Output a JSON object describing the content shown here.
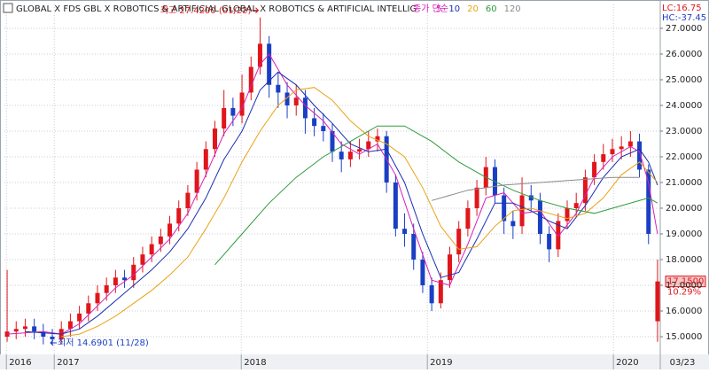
{
  "chart_data": {
    "type": "candlestick",
    "title": "GLOBAL X FDS GBL X ROBOTICS & ARTIFICIAL  GLOBAL X ROBOTICS & ARTIFICIAL INTELLIG",
    "indicator_label": "종가 단순",
    "top_right": [
      "LC:16.75",
      "HC:-37.45"
    ],
    "up_color": "#e0161b",
    "down_color": "#1a3fc4",
    "grid": true,
    "xlim": [
      -0.3,
      72.3
    ],
    "ylim": [
      14.31,
      27.93
    ],
    "yticks": [
      {
        "value": 15,
        "label": "15.0000"
      },
      {
        "value": 16,
        "label": "16.0000"
      },
      {
        "value": 17,
        "label": "17.0000"
      },
      {
        "value": 18,
        "label": "18.0000"
      },
      {
        "value": 19,
        "label": "19.0000"
      },
      {
        "value": 20,
        "label": "20.0000"
      },
      {
        "value": 21,
        "label": "21.0000"
      },
      {
        "value": 22,
        "label": "22.0000"
      },
      {
        "value": 23,
        "label": "23.0000"
      },
      {
        "value": 24,
        "label": "24.0000"
      },
      {
        "value": 25,
        "label": "25.0000"
      },
      {
        "value": 26,
        "label": "26.0000"
      },
      {
        "value": 27,
        "label": "27.0000"
      }
    ],
    "xticks": [
      {
        "value": 0.7,
        "label": "2016"
      },
      {
        "value": 6,
        "label": "2017"
      },
      {
        "value": 26.7,
        "label": "2018"
      },
      {
        "value": 47.3,
        "label": "2019"
      },
      {
        "value": 67.9,
        "label": "2020"
      }
    ],
    "last_date": "03/23",
    "open": [
      15.0,
      15.2,
      15.3,
      15.4,
      15.2,
      15.0,
      14.9,
      15.3,
      15.6,
      15.9,
      16.3,
      16.7,
      17.0,
      17.3,
      17.2,
      17.8,
      18.2,
      18.6,
      18.9,
      19.4,
      20.0,
      20.6,
      21.5,
      22.3,
      23.1,
      23.9,
      23.6,
      24.5,
      25.5,
      26.4,
      24.8,
      24.5,
      24.0,
      24.3,
      23.5,
      23.2,
      23.0,
      22.2,
      21.9,
      22.2,
      22.3,
      22.6,
      22.8,
      21.0,
      19.2,
      19.0,
      18.0,
      17.0,
      16.3,
      17.2,
      18.2,
      19.2,
      20.0,
      20.8,
      21.6,
      20.5,
      19.5,
      19.3,
      20.5,
      20.3,
      19.0,
      18.4,
      19.5,
      20.0,
      20.2,
      21.2,
      21.8,
      22.1,
      22.3,
      22.4,
      22.6,
      21.5,
      15.6
    ],
    "high": [
      17.6,
      15.6,
      15.7,
      15.7,
      15.5,
      15.3,
      15.6,
      15.9,
      16.2,
      16.6,
      17.0,
      17.3,
      17.6,
      17.6,
      18.1,
      18.5,
      18.9,
      19.2,
      19.7,
      20.3,
      20.9,
      21.8,
      22.6,
      23.4,
      24.6,
      24.3,
      25.2,
      25.9,
      27.42,
      26.7,
      25.3,
      24.9,
      24.8,
      24.6,
      23.9,
      23.7,
      23.3,
      22.6,
      22.6,
      22.7,
      23.0,
      23.1,
      23.0,
      21.3,
      19.8,
      19.4,
      18.3,
      17.3,
      17.5,
      18.5,
      19.5,
      20.3,
      21.1,
      22.0,
      21.9,
      20.8,
      19.9,
      21.2,
      20.9,
      20.6,
      19.3,
      19.8,
      20.3,
      20.6,
      21.5,
      22.1,
      22.5,
      22.7,
      22.8,
      23.0,
      22.9,
      21.7,
      18.0
    ],
    "low": [
      14.8,
      14.9,
      15.0,
      14.9,
      14.7,
      14.69,
      14.7,
      15.0,
      15.3,
      15.6,
      16.0,
      16.4,
      16.7,
      16.9,
      16.9,
      17.5,
      17.9,
      18.3,
      18.6,
      19.1,
      19.7,
      20.3,
      21.2,
      22.0,
      22.8,
      23.2,
      23.3,
      24.2,
      25.2,
      24.3,
      23.9,
      23.5,
      23.6,
      22.9,
      22.8,
      22.6,
      21.8,
      21.4,
      21.6,
      21.9,
      22.0,
      22.2,
      20.6,
      18.9,
      18.5,
      17.6,
      16.7,
      16.0,
      16.1,
      16.9,
      17.9,
      18.9,
      19.7,
      20.5,
      20.2,
      19.0,
      18.8,
      19.0,
      19.9,
      18.6,
      17.9,
      18.1,
      19.2,
      19.7,
      19.9,
      20.9,
      21.5,
      21.8,
      21.9,
      22.0,
      21.2,
      18.6,
      14.8
    ],
    "close": [
      15.2,
      15.3,
      15.4,
      15.2,
      15.0,
      14.9,
      15.3,
      15.6,
      15.9,
      16.3,
      16.7,
      17.0,
      17.3,
      17.2,
      17.8,
      18.2,
      18.6,
      18.9,
      19.4,
      20.0,
      20.6,
      21.5,
      22.3,
      23.1,
      23.9,
      23.6,
      24.5,
      25.5,
      26.4,
      24.8,
      24.5,
      24.0,
      24.3,
      23.5,
      23.2,
      23.0,
      22.2,
      21.9,
      22.2,
      22.3,
      22.6,
      22.8,
      21.0,
      19.2,
      19.0,
      18.0,
      17.0,
      16.3,
      17.2,
      18.2,
      19.2,
      20.0,
      20.8,
      21.6,
      20.5,
      19.5,
      19.3,
      20.5,
      20.3,
      19.0,
      18.4,
      19.5,
      20.0,
      20.2,
      21.2,
      21.8,
      22.1,
      22.3,
      22.4,
      22.6,
      21.5,
      19.0,
      17.15
    ],
    "series": [
      {
        "name": "5",
        "color": "#d81fb8",
        "x": [
          0,
          4,
          6,
          8,
          10,
          12,
          14,
          16,
          18,
          20,
          22,
          24,
          26,
          28,
          29,
          31,
          33,
          35,
          37,
          39,
          41,
          43,
          45,
          47,
          49,
          51,
          53,
          55,
          57,
          59,
          61,
          63,
          65,
          67,
          69,
          70,
          71,
          72
        ],
        "values": [
          15.1,
          15.2,
          15.1,
          15.5,
          16.2,
          16.9,
          17.4,
          18.1,
          18.8,
          19.8,
          21.3,
          22.9,
          23.9,
          25.6,
          26.0,
          24.8,
          24.0,
          23.4,
          22.5,
          22.1,
          22.5,
          21.3,
          19.2,
          17.2,
          17.0,
          18.6,
          20.4,
          20.6,
          19.8,
          19.9,
          18.9,
          19.8,
          21.2,
          22.0,
          22.4,
          22.2,
          21.0,
          19.0
        ]
      },
      {
        "name": "10",
        "color": "#1a2fb0",
        "x": [
          2,
          6,
          8,
          10,
          12,
          14,
          16,
          18,
          20,
          22,
          24,
          26,
          28,
          30,
          32,
          34,
          36,
          38,
          40,
          42,
          44,
          46,
          48,
          50,
          52,
          54,
          56,
          58,
          60,
          62,
          64,
          66,
          68,
          70,
          71,
          72
        ],
        "values": [
          15.2,
          15.1,
          15.3,
          15.8,
          16.4,
          17.0,
          17.6,
          18.3,
          19.2,
          20.4,
          21.9,
          23.0,
          24.6,
          25.3,
          24.8,
          24.0,
          23.3,
          22.5,
          22.2,
          22.3,
          21.0,
          19.0,
          17.3,
          17.5,
          18.8,
          20.2,
          20.2,
          19.9,
          19.5,
          19.2,
          20.1,
          21.2,
          22.0,
          22.3,
          21.8,
          20.9
        ]
      },
      {
        "name": "20",
        "color": "#e8a317",
        "x": [
          6,
          8,
          10,
          12,
          14,
          16,
          18,
          20,
          22,
          24,
          26,
          28,
          30,
          32,
          34,
          36,
          38,
          40,
          42,
          44,
          46,
          48,
          50,
          52,
          54,
          56,
          58,
          60,
          62,
          64,
          66,
          68,
          70,
          72
        ],
        "values": [
          15.0,
          15.1,
          15.4,
          15.8,
          16.3,
          16.8,
          17.4,
          18.1,
          19.2,
          20.4,
          21.8,
          23.0,
          24.0,
          24.6,
          24.7,
          24.2,
          23.4,
          22.8,
          22.5,
          22.0,
          20.8,
          19.3,
          18.4,
          18.5,
          19.3,
          19.9,
          20.0,
          19.8,
          19.6,
          19.8,
          20.4,
          21.3,
          21.8,
          21.0
        ]
      },
      {
        "name": "60",
        "color": "#2e9a3a",
        "x": [
          23,
          26,
          29,
          32,
          35,
          38,
          41,
          44,
          47,
          50,
          53,
          56,
          59,
          62,
          65,
          68,
          71,
          72
        ],
        "values": [
          17.8,
          19.0,
          20.2,
          21.2,
          22.0,
          22.6,
          23.2,
          23.2,
          22.6,
          21.8,
          21.2,
          20.7,
          20.3,
          20.0,
          19.8,
          20.1,
          20.4,
          20.2
        ]
      },
      {
        "name": "120",
        "color": "#8a8a8a",
        "x": [
          47,
          51,
          55,
          59,
          63,
          67,
          70
        ],
        "values": [
          20.3,
          20.7,
          20.9,
          21.0,
          21.1,
          21.2,
          21.2
        ]
      }
    ],
    "annotations": [
      {
        "text": "최고 27.4200 (01/22)",
        "x": 28,
        "y": 27.42,
        "color": "#e0161b"
      },
      {
        "text": "최저 14.6901 (11/28)",
        "x": 5,
        "y": 14.69,
        "color": "#1a3fc4"
      }
    ],
    "last_price": {
      "value": 17.15,
      "label": "17.1500",
      "change": "10.29%"
    }
  }
}
